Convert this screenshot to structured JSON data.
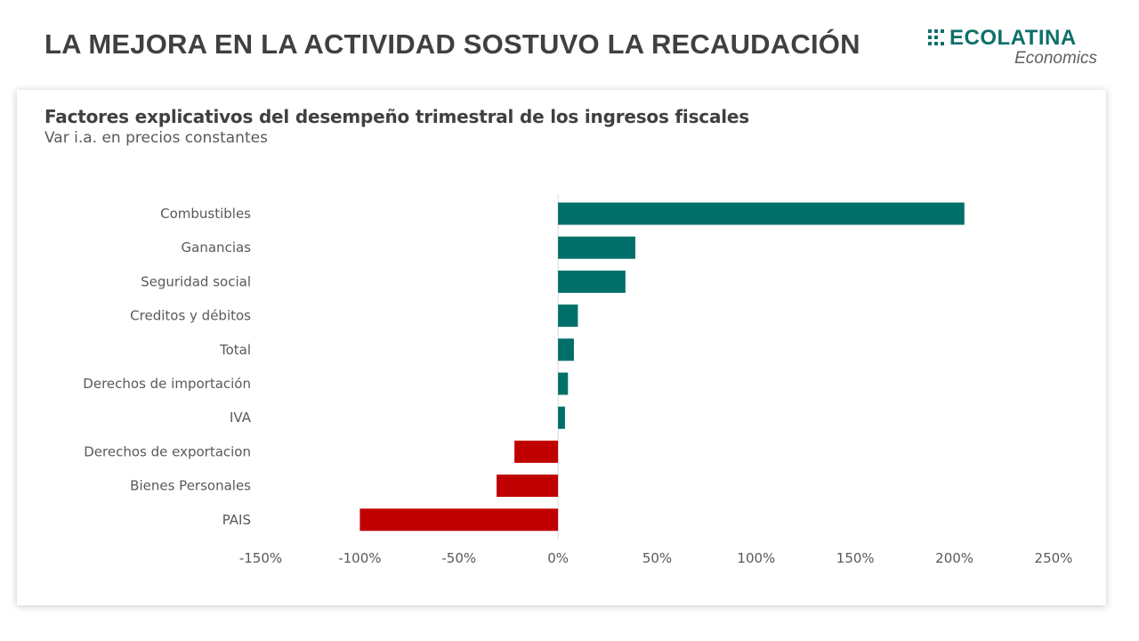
{
  "header": {
    "title": "LA MEJORA EN LA ACTIVIDAD SOSTUVO LA RECAUDACIÓN"
  },
  "logo": {
    "name": "ECOLATINA",
    "sub": "Economics",
    "icon": "grid-squares-icon",
    "color": "#0e6f69"
  },
  "colors": {
    "positive": "#006f69",
    "negative": "#c00000"
  },
  "chart_data": {
    "type": "bar",
    "orientation": "horizontal",
    "title": "Factores explicativos del desempeño trimestral de los ingresos fiscales",
    "subtitle": "Var i.a. en precios constantes",
    "categories": [
      "Combustibles",
      "Ganancias",
      "Seguridad social",
      "Creditos y débitos",
      "Total",
      "Derechos de importación",
      "IVA",
      "Derechos de exportacion",
      "Bienes Personales",
      "PAIS"
    ],
    "values": [
      205,
      39,
      34,
      10,
      8,
      5,
      3.5,
      -22,
      -31,
      -100
    ],
    "xlim": [
      -150,
      250
    ],
    "xticks": [
      -150,
      -100,
      -50,
      0,
      50,
      100,
      150,
      200,
      250
    ],
    "xtick_labels": [
      "-150%",
      "-100%",
      "-50%",
      "0%",
      "50%",
      "100%",
      "150%",
      "200%",
      "250%"
    ],
    "grid": false,
    "legend": "none"
  }
}
